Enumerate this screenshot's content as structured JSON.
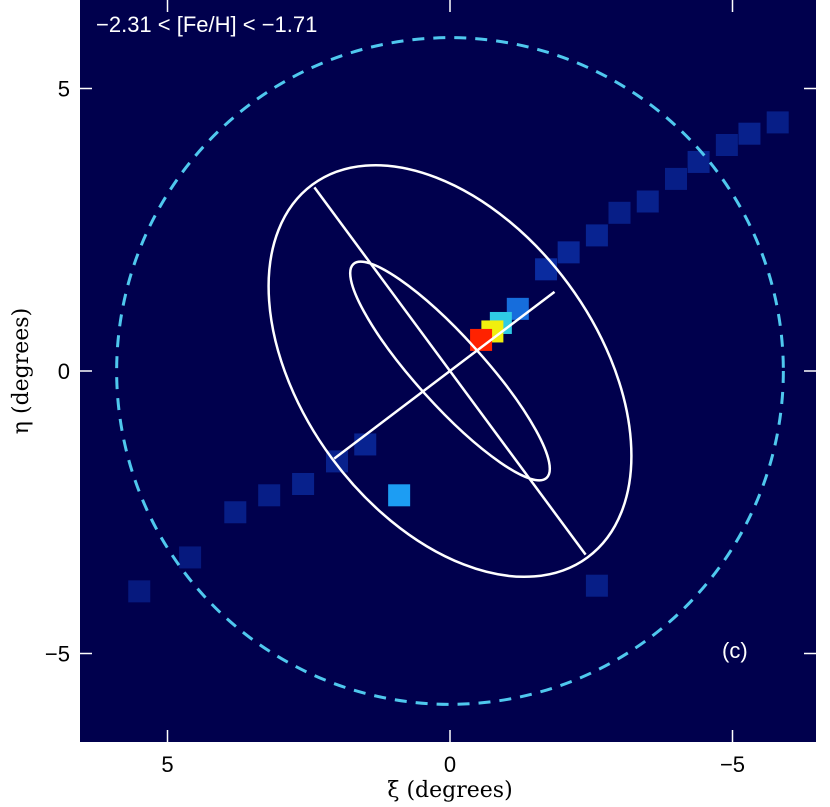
{
  "chart_data": {
    "type": "heatmap",
    "title": "−2.31 < [Fe/H] < −1.71",
    "panel_label": "(c)",
    "xlabel": "ξ (degrees)",
    "ylabel": "η (degrees)",
    "xlim": [
      6.5,
      -6.5
    ],
    "ylim": [
      -6.5,
      6.5
    ],
    "x_ticks": [
      5,
      0,
      -5
    ],
    "x_tick_labels": [
      "5",
      "0",
      "−5"
    ],
    "y_ticks": [
      5,
      0,
      -5
    ],
    "y_tick_labels": [
      "5",
      "0",
      "−5"
    ],
    "background_color": "#00004d",
    "colormap": [
      "#00004d",
      "#0a2a9e",
      "#1565d8",
      "#1fb5ff",
      "#55ffaa",
      "#ffee00",
      "#ff2200"
    ],
    "density_cells": [
      {
        "xi": -5.8,
        "eta": 4.4,
        "level": 0.12
      },
      {
        "xi": -5.3,
        "eta": 4.2,
        "level": 0.13
      },
      {
        "xi": -4.9,
        "eta": 4.0,
        "level": 0.12
      },
      {
        "xi": -4.4,
        "eta": 3.7,
        "level": 0.13
      },
      {
        "xi": -4.0,
        "eta": 3.4,
        "level": 0.12
      },
      {
        "xi": -3.5,
        "eta": 3.0,
        "level": 0.13
      },
      {
        "xi": -3.0,
        "eta": 2.8,
        "level": 0.12
      },
      {
        "xi": -2.6,
        "eta": 2.4,
        "level": 0.14
      },
      {
        "xi": -2.1,
        "eta": 2.1,
        "level": 0.15
      },
      {
        "xi": -1.7,
        "eta": 1.8,
        "level": 0.17
      },
      {
        "xi": -1.2,
        "eta": 1.1,
        "level": 0.35
      },
      {
        "xi": -0.9,
        "eta": 0.85,
        "level": 0.55
      },
      {
        "xi": -0.75,
        "eta": 0.7,
        "level": 0.82
      },
      {
        "xi": -0.55,
        "eta": 0.55,
        "level": 1.0
      },
      {
        "xi": 0.9,
        "eta": -2.2,
        "level": 0.45
      },
      {
        "xi": 1.5,
        "eta": -1.3,
        "level": 0.14
      },
      {
        "xi": 2.0,
        "eta": -1.6,
        "level": 0.13
      },
      {
        "xi": 2.6,
        "eta": -2.0,
        "level": 0.13
      },
      {
        "xi": 3.2,
        "eta": -2.2,
        "level": 0.12
      },
      {
        "xi": 3.8,
        "eta": -2.5,
        "level": 0.12
      },
      {
        "xi": 4.6,
        "eta": -3.3,
        "level": 0.1
      },
      {
        "xi": 5.5,
        "eta": -3.9,
        "level": 0.1
      },
      {
        "xi": -2.6,
        "eta": -3.8,
        "level": 0.12
      }
    ],
    "ellipses": [
      {
        "name": "outer-ellipse",
        "center": [
          0,
          0
        ],
        "semi_major": 4.1,
        "semi_minor": 2.6,
        "major_axis_tip": [
          -2.4,
          -3.25
        ]
      },
      {
        "name": "inner-ellipse",
        "center": [
          0,
          0
        ],
        "semi_major": 2.55,
        "semi_minor": 0.6,
        "major_axis_tip": [
          1.4,
          1.55
        ]
      }
    ],
    "minor_axis_line": {
      "from": [
        2.05,
        -1.55
      ],
      "to": [
        -1.85,
        1.4
      ]
    },
    "dashed_circle": {
      "center": [
        0,
        0
      ],
      "radius": 5.9,
      "color": "#4fc8ee"
    },
    "grid": false,
    "legend": "none"
  }
}
